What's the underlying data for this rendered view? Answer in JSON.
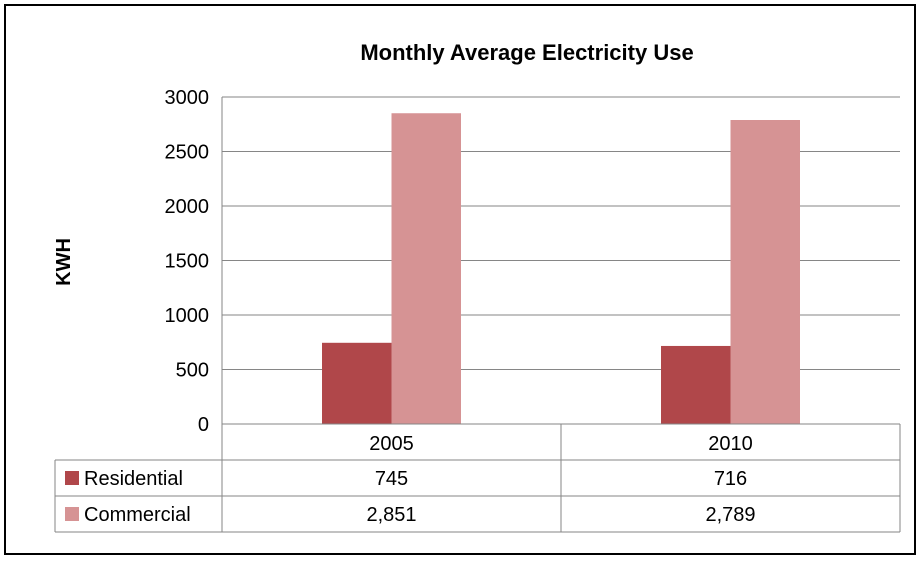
{
  "chart_data": {
    "type": "bar",
    "title": "Monthly Average Electricity Use",
    "ylabel": "KWH",
    "ylim": [
      0,
      3000
    ],
    "yticks": [
      0,
      500,
      1000,
      1500,
      2000,
      2500,
      3000
    ],
    "categories": [
      "2005",
      "2010"
    ],
    "grid": true,
    "legend": "data-table",
    "series": [
      {
        "name": "Residential",
        "values": [
          745,
          716
        ],
        "labels": [
          "745",
          "716"
        ],
        "color": "#b0474a"
      },
      {
        "name": "Commercial",
        "values": [
          2851,
          2789
        ],
        "labels": [
          "2,851",
          "2,789"
        ],
        "color": "#d69394"
      }
    ]
  }
}
